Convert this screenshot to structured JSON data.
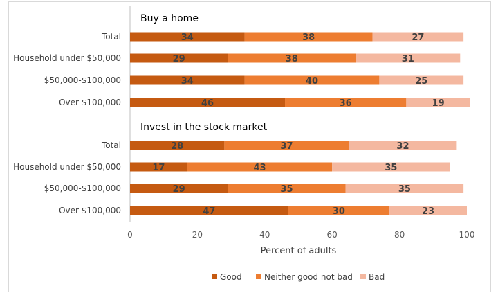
{
  "chart_data": {
    "type": "bar",
    "orientation": "horizontal",
    "stacked": true,
    "xlabel": "Percent of adults",
    "xlim": [
      0,
      100
    ],
    "xticks": [
      0,
      20,
      40,
      60,
      80,
      100
    ],
    "grid": "vertical axis line only",
    "legend_position": "bottom",
    "series": [
      {
        "name": "Good",
        "color": "#c55a11"
      },
      {
        "name": "Neither good not bad",
        "color": "#ed7d31"
      },
      {
        "name": "Bad",
        "color": "#f4b8a0"
      }
    ],
    "groups": [
      {
        "title": "Buy a home",
        "rows": [
          {
            "label": "Total",
            "values": [
              34,
              38,
              27
            ]
          },
          {
            "label": "Household under $50,000",
            "values": [
              29,
              38,
              31
            ]
          },
          {
            "label": "$50,000-$100,000",
            "values": [
              34,
              40,
              25
            ]
          },
          {
            "label": "Over $100,000",
            "values": [
              46,
              36,
              19
            ]
          }
        ]
      },
      {
        "title": "Invest in the stock market",
        "rows": [
          {
            "label": "Total",
            "values": [
              28,
              37,
              32
            ]
          },
          {
            "label": "Household under $50,000",
            "values": [
              17,
              43,
              35
            ]
          },
          {
            "label": "$50,000-$100,000",
            "values": [
              29,
              35,
              35
            ]
          },
          {
            "label": "Over $100,000",
            "values": [
              47,
              30,
              23
            ]
          }
        ]
      }
    ]
  }
}
